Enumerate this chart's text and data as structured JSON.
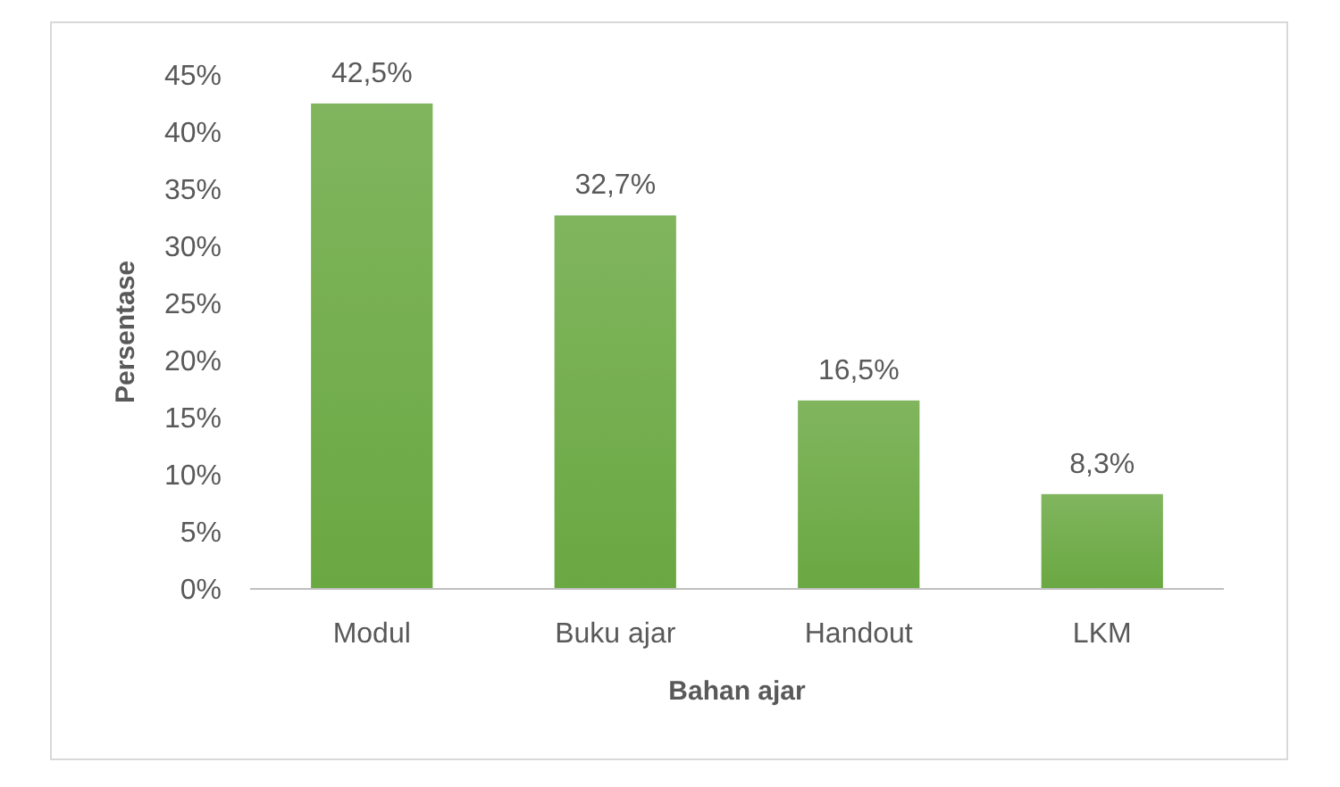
{
  "chart_data": {
    "type": "bar",
    "xlabel": "Bahan ajar",
    "ylabel": "Persentase",
    "categories": [
      "Modul",
      "Buku ajar",
      "Handout",
      "LKM"
    ],
    "values": [
      42.5,
      32.7,
      16.5,
      8.3
    ],
    "value_labels": [
      "42,5%",
      "32,7%",
      "16,5%",
      "8,3%"
    ],
    "color": "#6aa842",
    "ylim": [
      0,
      45
    ],
    "yticks": [
      {
        "value": 0,
        "label": "0%"
      },
      {
        "value": 5,
        "label": "5%"
      },
      {
        "value": 10,
        "label": "10%"
      },
      {
        "value": 15,
        "label": "15%"
      },
      {
        "value": 20,
        "label": "20%"
      },
      {
        "value": 25,
        "label": "25%"
      },
      {
        "value": 30,
        "label": "30%"
      },
      {
        "value": 35,
        "label": "35%"
      },
      {
        "value": 40,
        "label": "40%"
      },
      {
        "value": 45,
        "label": "45%"
      }
    ],
    "grid": false
  }
}
